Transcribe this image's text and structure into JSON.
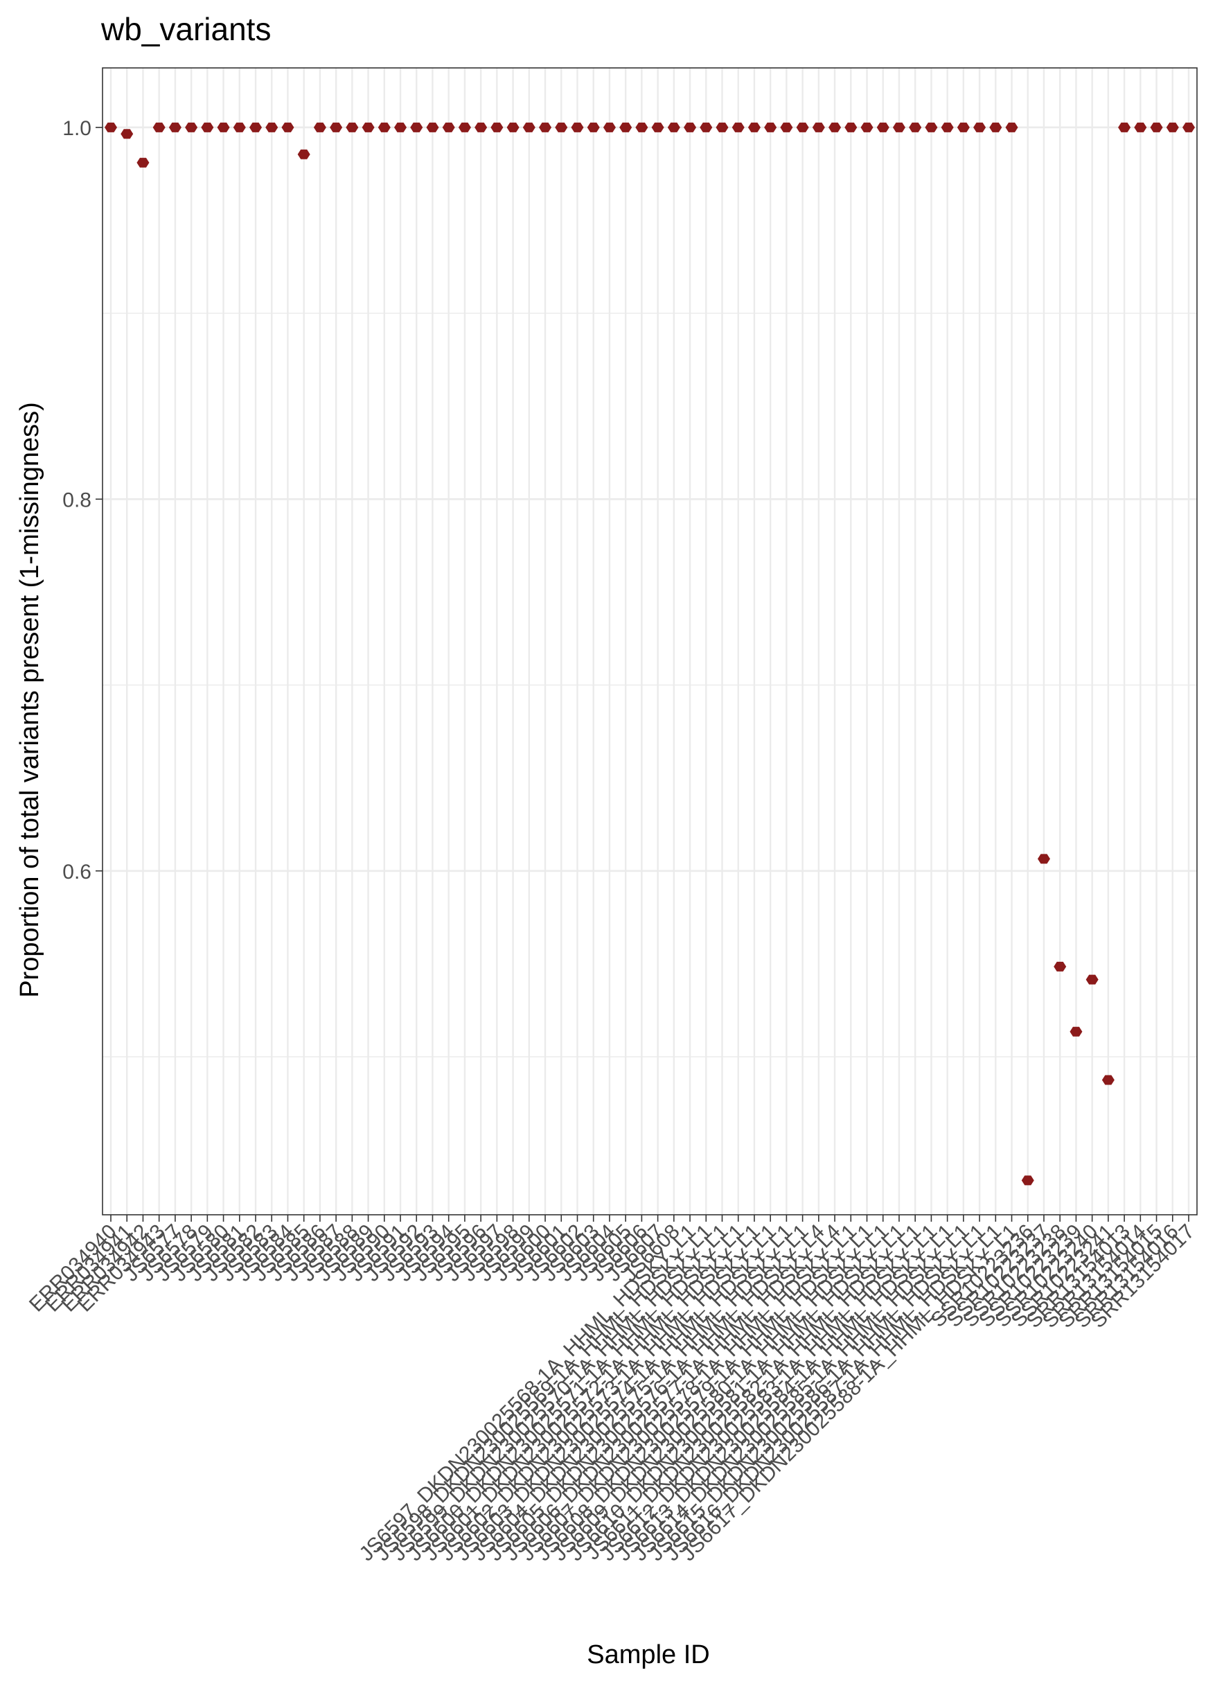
{
  "chart_data": {
    "type": "scatter",
    "title": "wb_variants",
    "xlabel": "Sample ID",
    "ylabel": "Proportion of total variants present (1-missingness)",
    "ylim": [
      0.415,
      1.032
    ],
    "yticks": [
      0.6,
      0.8,
      1.0
    ],
    "ytick_labels": [
      "0.6",
      "0.8",
      "1.0"
    ],
    "grid": true,
    "point_color": "#8B1A1A",
    "grid_color": "#EBEBEB",
    "categories": [
      "ERR034940",
      "ERR034941",
      "ERR034942",
      "ERR034943",
      "JS6577",
      "JS6578",
      "JS6579",
      "JS6580",
      "JS6581",
      "JS6582",
      "JS6583",
      "JS6584",
      "JS6585",
      "JS6586",
      "JS6587",
      "JS6588",
      "JS6589",
      "JS6590",
      "JS6591",
      "JS6592",
      "JS6593",
      "JS6594",
      "JS6595",
      "JS6596",
      "JS6597",
      "JS6598",
      "JS6599",
      "JS6600",
      "JS6601",
      "JS6602",
      "JS6603",
      "JS6604",
      "JS6605",
      "JS6606",
      "JS6607",
      "JS6608",
      "JS6597_DKDN230025568-1A_HHML_HDSKY_L1",
      "JS6598_DKDN230025569-1A_HHML_HDSKY_L1",
      "JS6599_DKDN230025570-1A_HHML_HDSKY_L1",
      "JS6600_DKDN230025571-1A_HHML_HDSKY_L1",
      "JS6601_DKDN230025572-1A_HHML_HDSKY_L1",
      "JS6602_DKDN230025573-1A_HHML_HDSKY_L1",
      "JS6603_DKDN230025574-1A_HHML_HDSKY_L1",
      "JS6604_DKDN230025575-1A_HHML_HDSKY_L1",
      "JS6605_DKDN230025576-1A_HHML_HDSKY_L4",
      "JS6606_DKDN230025577-1A_HHML_HDSKY_L4",
      "JS6607_DKDN230025578-1A_HHML_HDSKY_L1",
      "JS6608_DKDN230025579-1A_HHML_HDSKY_L1",
      "JS6609_DKDN230025580-1A_HHML_HDSKY_L1",
      "JS6610_DKDN230025581-1A_HHML_HDSKY_L1",
      "JS6611_DKDN230025582-1A_HHML_HDSKY_L1",
      "JS6612_DKDN230025583-1A_HHML_HDSKY_L1",
      "JS6613_DKDN230025584-1A_HHML_HDSKY_L1",
      "JS6614_DKDN230025585-1A_HHML_HDSKY_L1",
      "JS6615_DKDN230025586-1A_HHML_HDSKY_L1",
      "JS6616_DKDN230025587-1A_HHML_HDSKY_L1",
      "JS6617_DKDN230025588-1A_HHML_HDSKY_L1",
      "SSR10223236",
      "SSR10223237",
      "SSR10223238",
      "SSR10223239",
      "SSR10223240",
      "SSR10223241",
      "SRR13154013",
      "SRR13154014",
      "SRR13154015",
      "SRR13154016",
      "SRR13154017"
    ],
    "values": [
      1.0,
      0.9965,
      0.981,
      1.0,
      1.0,
      1.0,
      1.0,
      1.0,
      1.0,
      1.0,
      1.0,
      1.0,
      0.9855,
      1.0,
      1.0,
      1.0,
      1.0,
      1.0,
      1.0,
      1.0,
      1.0,
      1.0,
      1.0,
      1.0,
      1.0,
      1.0,
      1.0,
      1.0,
      1.0,
      1.0,
      1.0,
      1.0,
      1.0,
      1.0,
      1.0,
      1.0,
      1.0,
      1.0,
      1.0,
      1.0,
      1.0,
      1.0,
      1.0,
      1.0,
      1.0,
      1.0,
      1.0,
      1.0,
      1.0,
      1.0,
      1.0,
      1.0,
      1.0,
      1.0,
      1.0,
      1.0,
      1.0,
      0.4335,
      0.6065,
      0.5485,
      0.5135,
      0.5415,
      0.4875,
      1.0,
      1.0,
      1.0,
      1.0,
      1.0
    ]
  }
}
